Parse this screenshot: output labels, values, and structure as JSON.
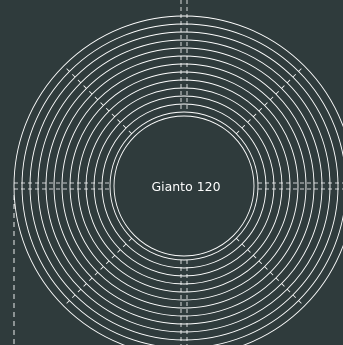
{
  "diagram": {
    "label": "Gianto 120",
    "colors": {
      "background": "#2f3b3c",
      "line": "#ffffff"
    }
  }
}
